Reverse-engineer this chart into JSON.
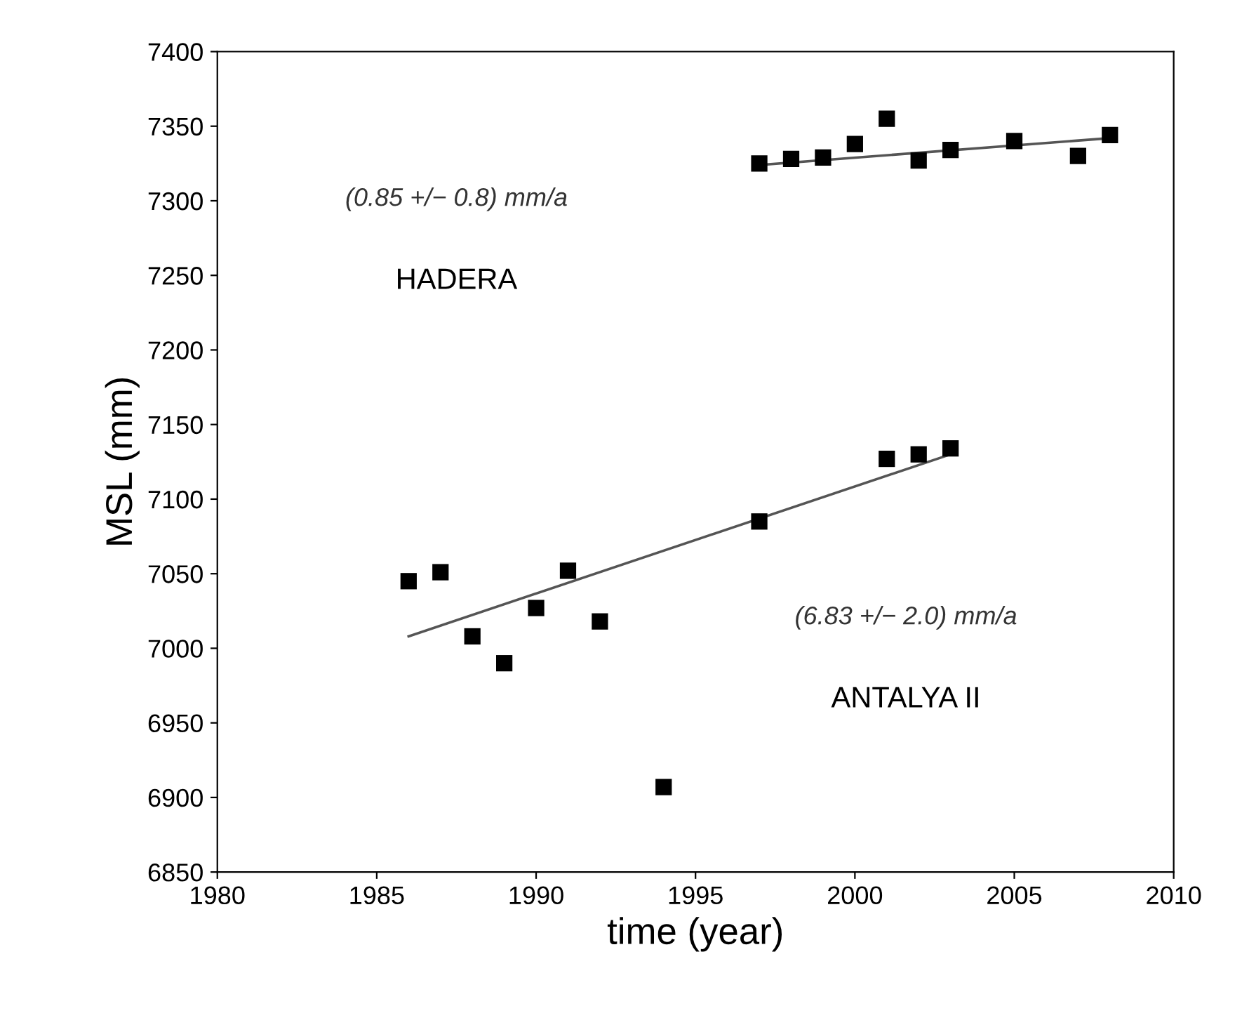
{
  "chart_data": {
    "type": "scatter",
    "xlabel": "time (year)",
    "ylabel": "MSL (mm)",
    "xlim": [
      1980,
      2010
    ],
    "xticks": [
      1980,
      1985,
      1990,
      1995,
      2000,
      2005,
      2010
    ],
    "ylim": [
      6850,
      7400
    ],
    "yticks": [
      6850,
      6900,
      6950,
      7000,
      7050,
      7100,
      7150,
      7200,
      7250,
      7300,
      7350,
      7400
    ],
    "grid": false,
    "legend": false,
    "series": [
      {
        "marker": "square",
        "color": "#000000",
        "x": [
          1997,
          1998,
          1999,
          2000,
          2001,
          2002,
          2003,
          2005,
          2007,
          2008
        ],
        "values": [
          7325,
          7328,
          7329,
          7338,
          7355,
          7327,
          7334,
          7340,
          7330,
          7344
        ]
      },
      {
        "marker": "square",
        "color": "#000000",
        "x": [
          1986,
          1987,
          1988,
          1989,
          1990,
          1991,
          1992,
          1994,
          1997,
          2001,
          2002,
          2003
        ],
        "values": [
          7045,
          7051,
          7008,
          6990,
          7027,
          7052,
          7018,
          6907,
          7085,
          7127,
          7130,
          7134
        ]
      },
      {
        "type": "line",
        "color": "#555555",
        "x": [
          1997,
          2008
        ],
        "values": [
          7324,
          7342
        ]
      },
      {
        "type": "line",
        "color": "#555555",
        "x": [
          1986,
          2003
        ],
        "values": [
          7008,
          7130
        ]
      }
    ],
    "annotations": [
      "(0.85 +/− 0.8) mm/a",
      "HADERA",
      "(6.83 +/− 2.0) mm/a",
      "ANTALYA II"
    ]
  }
}
